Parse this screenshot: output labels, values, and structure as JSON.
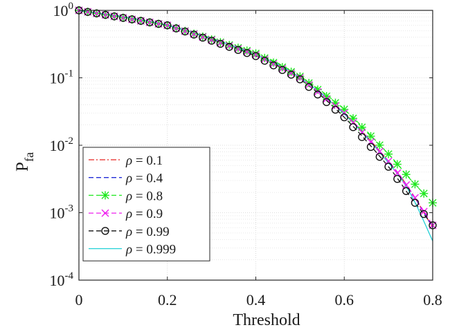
{
  "chart_data": {
    "type": "line",
    "xlabel": "Threshold",
    "ylabel_main": "P",
    "ylabel_sub": "fa",
    "xlim": [
      0,
      0.8
    ],
    "ylim": [
      0.0001,
      1
    ],
    "yscale": "log",
    "grid": true,
    "minor_grid": true,
    "legend_position": "bottom-left",
    "x_ticks": [
      {
        "value": 0,
        "label": "0"
      },
      {
        "value": 0.2,
        "label": "0.2"
      },
      {
        "value": 0.4,
        "label": "0.4"
      },
      {
        "value": 0.6,
        "label": "0.6"
      },
      {
        "value": 0.8,
        "label": "0.8"
      }
    ],
    "y_ticks": [
      {
        "value": 1,
        "base": "10",
        "exp": "0"
      },
      {
        "value": 0.1,
        "base": "10",
        "exp": "-1"
      },
      {
        "value": 0.01,
        "base": "10",
        "exp": "-2"
      },
      {
        "value": 0.001,
        "base": "10",
        "exp": "-3"
      },
      {
        "value": 0.0001,
        "base": "10",
        "exp": "-4"
      }
    ],
    "x": [
      0,
      0.2,
      0.4,
      0.5,
      0.6,
      0.7,
      0.75,
      0.8
    ],
    "series": [
      {
        "name": "ρ = 0.1",
        "color": "#e8201e",
        "dash": "8,3,2,3",
        "marker": "none",
        "values": [
          1.0,
          0.6,
          0.22,
          0.1,
          0.03,
          0.0058,
          0.0021,
          0.0006
        ]
      },
      {
        "name": "ρ = 0.4",
        "color": "#1f2ad6",
        "dash": "7,4",
        "marker": "none",
        "values": [
          1.0,
          0.6,
          0.22,
          0.1,
          0.03,
          0.0058,
          0.0021,
          0.0006
        ]
      },
      {
        "name": "ρ = 0.8",
        "color": "#1fe81f",
        "dash": "7,4",
        "marker": "star",
        "values": [
          1.0,
          0.6,
          0.23,
          0.105,
          0.034,
          0.0074,
          0.0031,
          0.0014
        ]
      },
      {
        "name": "ρ = 0.9",
        "color": "#ee1fee",
        "dash": "7,4",
        "marker": "x",
        "values": [
          1.0,
          0.6,
          0.22,
          0.1,
          0.03,
          0.0058,
          0.0021,
          0.00065
        ]
      },
      {
        "name": "ρ = 0.99",
        "color": "#111111",
        "dash": "7,4",
        "marker": "circle",
        "values": [
          1.0,
          0.6,
          0.21,
          0.095,
          0.026,
          0.0048,
          0.0017,
          0.00065
        ]
      },
      {
        "name": "ρ = 0.999",
        "color": "#1fd0d6",
        "dash": "",
        "marker": "none",
        "values": [
          1.0,
          0.6,
          0.22,
          0.1,
          0.029,
          0.0055,
          0.0019,
          0.00038
        ]
      }
    ]
  }
}
